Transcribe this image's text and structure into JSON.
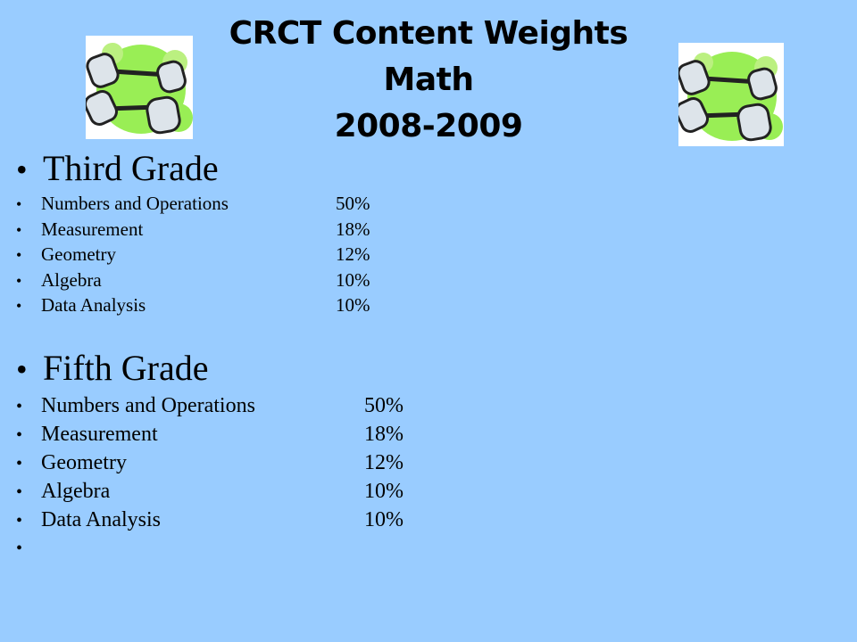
{
  "title": {
    "line1": "CRCT Content Weights",
    "line2": "Math",
    "line3": "2008-2009"
  },
  "icons": {
    "left": "dumbbell-icon",
    "right": "dumbbell-icon"
  },
  "colors": {
    "background": "#99ccff",
    "clipart_green": "#99ee55"
  },
  "sections": [
    {
      "heading": "Third Grade",
      "items": [
        {
          "label": "Numbers and Operations",
          "value": "50%"
        },
        {
          "label": "Measurement",
          "value": "18%"
        },
        {
          "label": "Geometry",
          "value": "12%"
        },
        {
          "label": "Algebra",
          "value": "10%"
        },
        {
          "label": "Data Analysis",
          "value": "10%"
        }
      ]
    },
    {
      "heading": "Fifth Grade",
      "items": [
        {
          "label": "Numbers and Operations",
          "value": "50%"
        },
        {
          "label": "Measurement",
          "value": "18%"
        },
        {
          "label": "Geometry",
          "value": "12%"
        },
        {
          "label": "Algebra",
          "value": "10%"
        },
        {
          "label": "Data Analysis",
          "value": "10%"
        }
      ]
    }
  ]
}
